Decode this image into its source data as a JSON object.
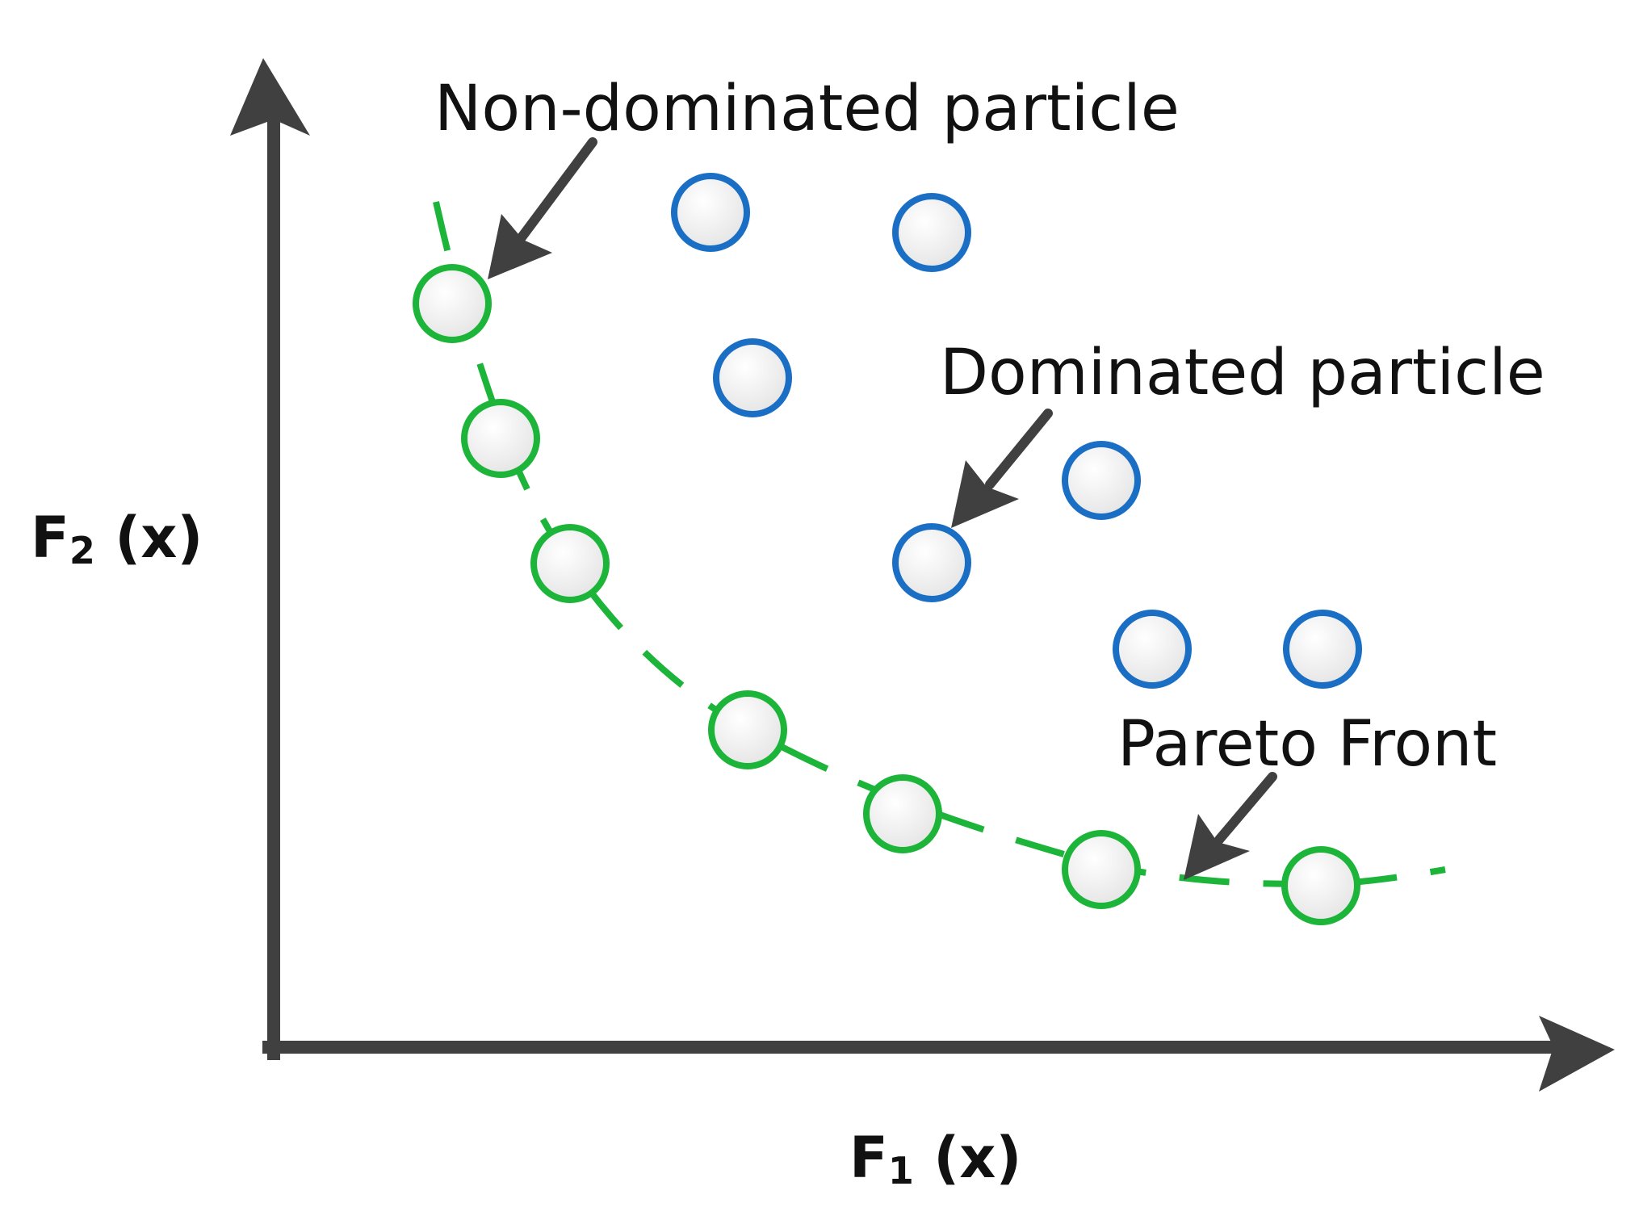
{
  "labels": {
    "non_dominated": "Non-dominated particle",
    "dominated": "Dominated particle",
    "pareto_front": "Pareto Front"
  },
  "axes": {
    "x_main": "F",
    "x_sub": "1",
    "x_tail": " (x)",
    "y_main": "F",
    "y_sub": "2",
    "y_tail": " (x)"
  },
  "colors": {
    "axis": "#404040",
    "arrow": "#404040",
    "pareto": "#1db43a",
    "dominated": "#1a6fc4",
    "particle_fill": "#eeeeee"
  }
}
